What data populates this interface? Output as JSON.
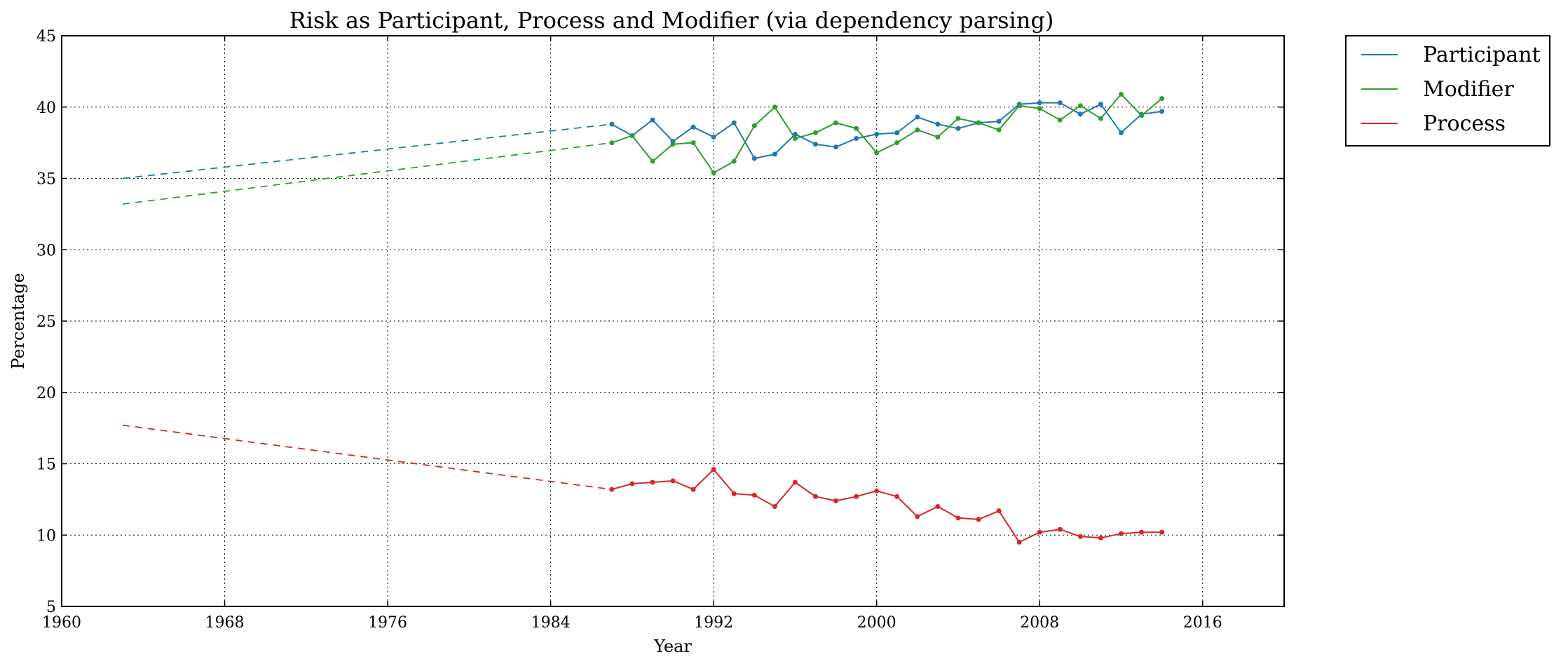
{
  "chart_data": {
    "type": "line",
    "title": "Risk as Participant, Process and Modifier (via dependency parsing)",
    "xlabel": "Year",
    "ylabel": "Percentage",
    "xlim": [
      1960,
      2020
    ],
    "ylim": [
      5,
      45
    ],
    "xticks": [
      1960,
      1968,
      1976,
      1984,
      1992,
      2000,
      2008,
      2016
    ],
    "yticks": [
      5,
      10,
      15,
      20,
      25,
      30,
      35,
      40,
      45
    ],
    "grid": true,
    "legend_position": "outside-top-right",
    "x": [
      1987,
      1988,
      1989,
      1990,
      1991,
      1992,
      1993,
      1994,
      1995,
      1996,
      1997,
      1998,
      1999,
      2000,
      2001,
      2002,
      2003,
      2004,
      2005,
      2006,
      2007,
      2008,
      2009,
      2010,
      2011,
      2012,
      2013,
      2014
    ],
    "series": [
      {
        "name": "Participant",
        "color": "#1f77b4",
        "values": [
          38.8,
          38.0,
          39.1,
          37.6,
          38.6,
          37.9,
          38.9,
          36.4,
          36.7,
          38.1,
          37.4,
          37.2,
          37.8,
          38.1,
          38.2,
          39.3,
          38.8,
          38.5,
          38.9,
          39.0,
          40.2,
          40.3,
          40.3,
          39.5,
          40.2,
          38.2,
          39.5,
          39.7
        ],
        "trend": {
          "x": [
            1963,
            1987
          ],
          "y": [
            35.0,
            38.8
          ]
        }
      },
      {
        "name": "Modifier",
        "color": "#2ca02c",
        "values": [
          37.5,
          38.0,
          36.2,
          37.4,
          37.5,
          35.4,
          36.2,
          38.7,
          40.0,
          37.8,
          38.2,
          38.9,
          38.5,
          36.8,
          37.5,
          38.4,
          37.9,
          39.2,
          38.9,
          38.4,
          40.1,
          39.9,
          39.1,
          40.1,
          39.2,
          40.9,
          39.4,
          40.6
        ],
        "trend": {
          "x": [
            1963,
            1987
          ],
          "y": [
            33.2,
            37.5
          ]
        }
      },
      {
        "name": "Process",
        "color": "#d62728",
        "values": [
          13.2,
          13.6,
          13.7,
          13.8,
          13.2,
          14.6,
          12.9,
          12.8,
          12.0,
          13.7,
          12.7,
          12.4,
          12.7,
          13.1,
          12.7,
          11.3,
          12.0,
          11.2,
          11.1,
          11.7,
          9.5,
          10.2,
          10.4,
          9.9,
          9.8,
          10.1,
          10.2,
          10.2
        ],
        "trend": {
          "x": [
            1963,
            1987
          ],
          "y": [
            17.7,
            13.2
          ]
        }
      }
    ]
  }
}
